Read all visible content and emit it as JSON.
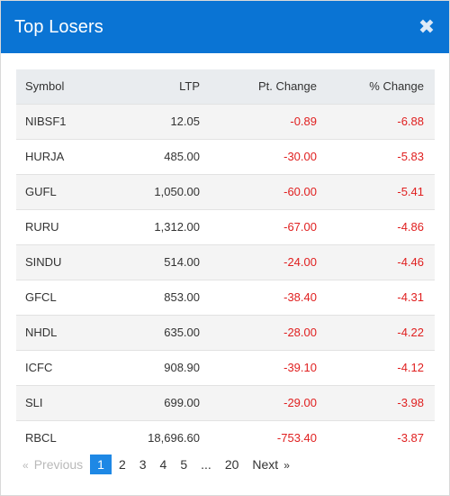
{
  "modal": {
    "title": "Top Losers",
    "close_symbol": "✖"
  },
  "table": {
    "headers": {
      "symbol": "Symbol",
      "ltp": "LTP",
      "pt_change": "Pt. Change",
      "pct_change": "% Change"
    },
    "rows": [
      {
        "symbol": "NIBSF1",
        "ltp": "12.05",
        "pt_change": "-0.89",
        "pct_change": "-6.88"
      },
      {
        "symbol": "HURJA",
        "ltp": "485.00",
        "pt_change": "-30.00",
        "pct_change": "-5.83"
      },
      {
        "symbol": "GUFL",
        "ltp": "1,050.00",
        "pt_change": "-60.00",
        "pct_change": "-5.41"
      },
      {
        "symbol": "RURU",
        "ltp": "1,312.00",
        "pt_change": "-67.00",
        "pct_change": "-4.86"
      },
      {
        "symbol": "SINDU",
        "ltp": "514.00",
        "pt_change": "-24.00",
        "pct_change": "-4.46"
      },
      {
        "symbol": "GFCL",
        "ltp": "853.00",
        "pt_change": "-38.40",
        "pct_change": "-4.31"
      },
      {
        "symbol": "NHDL",
        "ltp": "635.00",
        "pt_change": "-28.00",
        "pct_change": "-4.22"
      },
      {
        "symbol": "ICFC",
        "ltp": "908.90",
        "pt_change": "-39.10",
        "pct_change": "-4.12"
      },
      {
        "symbol": "SLI",
        "ltp": "699.00",
        "pt_change": "-29.00",
        "pct_change": "-3.98"
      },
      {
        "symbol": "RBCL",
        "ltp": "18,696.60",
        "pt_change": "-753.40",
        "pct_change": "-3.87"
      }
    ]
  },
  "pagination": {
    "prev_arrow": "«",
    "previous": "Previous",
    "pages": [
      "1",
      "2",
      "3",
      "4",
      "5"
    ],
    "ellipsis": "...",
    "last_page": "20",
    "next": "Next",
    "next_arrow": "»",
    "active_page": "1"
  },
  "colors": {
    "header_bg": "#0a74d4",
    "negative": "#e02020",
    "active_page": "#1e88e5"
  }
}
